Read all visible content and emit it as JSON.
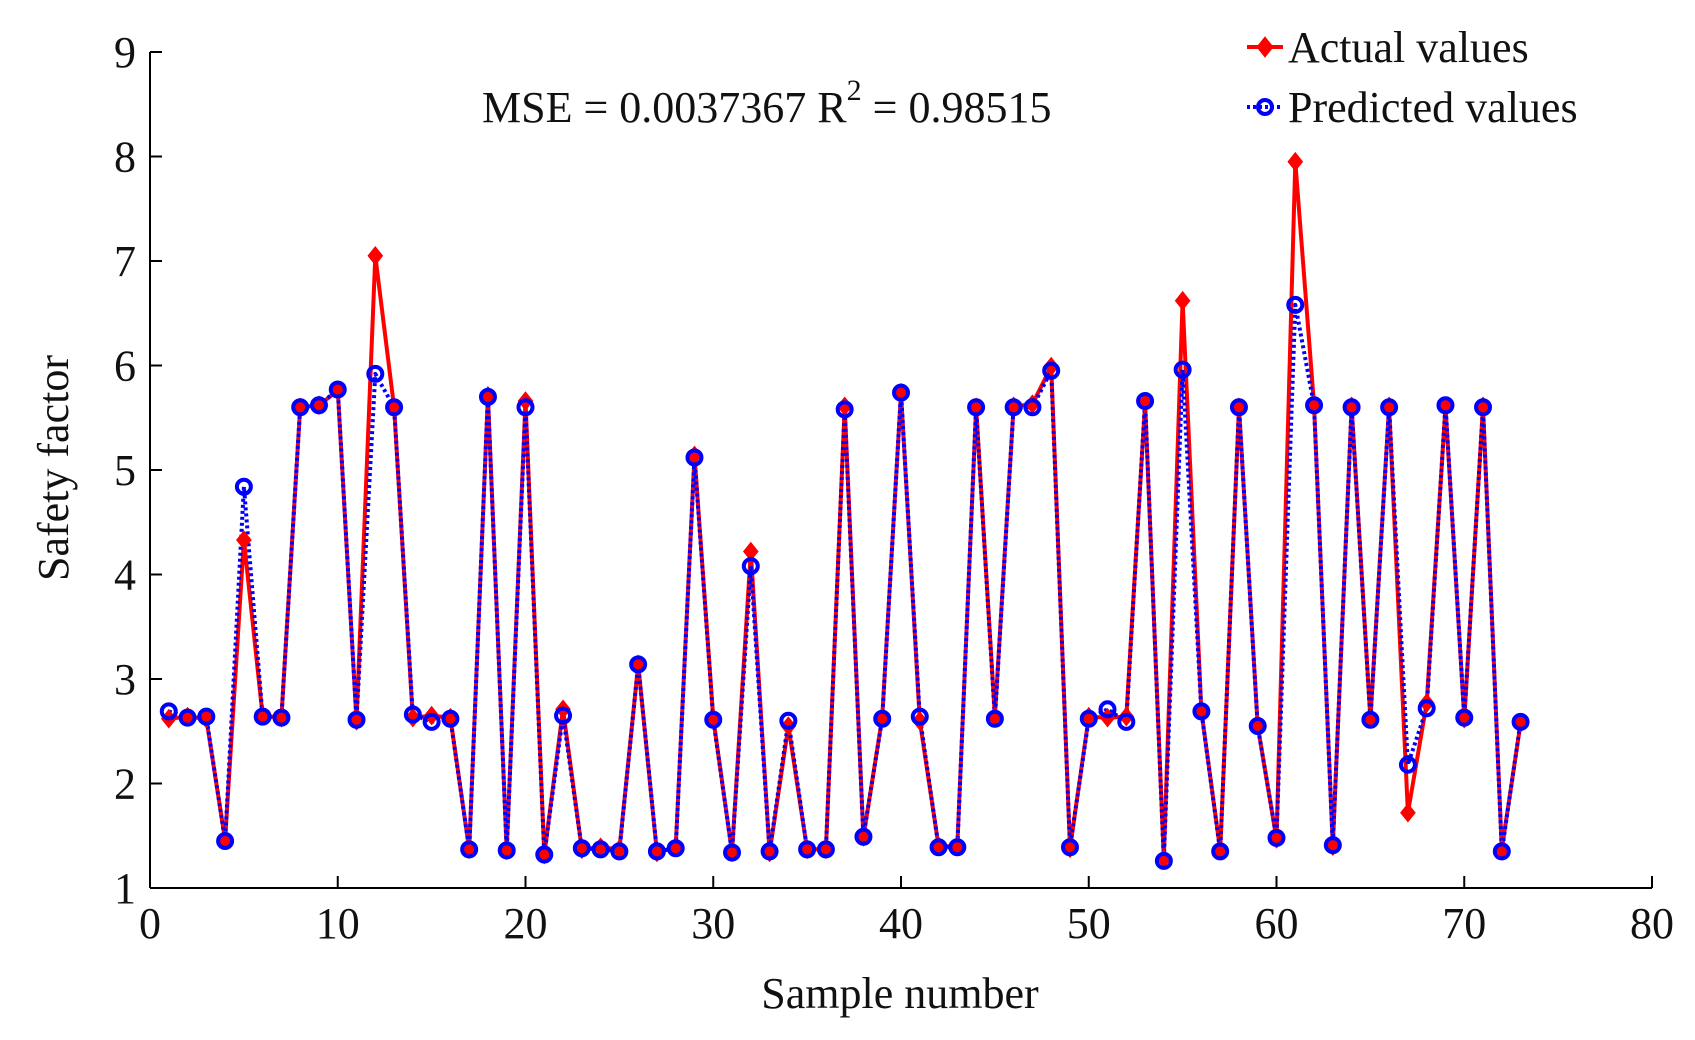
{
  "chart_data": {
    "type": "line",
    "xlabel": "Sample number",
    "ylabel": "Safety factor",
    "xlim": [
      0,
      80
    ],
    "ylim": [
      1,
      9
    ],
    "xticks": [
      "0",
      "10",
      "20",
      "30",
      "40",
      "50",
      "60",
      "70",
      "80"
    ],
    "yticks": [
      "1",
      "2",
      "3",
      "4",
      "5",
      "6",
      "7",
      "8",
      "9"
    ],
    "annotation": {
      "mse_text": "MSE = 0.0037367 R",
      "r2_sup": "2",
      "r2_text": " = 0.98515"
    },
    "legend_position": "top-right",
    "grid": false,
    "x": [
      1,
      2,
      3,
      4,
      5,
      6,
      7,
      8,
      9,
      10,
      11,
      12,
      13,
      14,
      15,
      16,
      17,
      18,
      19,
      20,
      21,
      22,
      23,
      24,
      25,
      26,
      27,
      28,
      29,
      30,
      31,
      32,
      33,
      34,
      35,
      36,
      37,
      38,
      39,
      40,
      41,
      42,
      43,
      44,
      45,
      46,
      47,
      48,
      49,
      50,
      51,
      52,
      53,
      54,
      55,
      56,
      57,
      58,
      59,
      60,
      61,
      62,
      63,
      64,
      65,
      66,
      67,
      68,
      69,
      70,
      71,
      72,
      73
    ],
    "series": [
      {
        "name": "Actual values",
        "color": "#ff0000",
        "marker": "diamond",
        "values": [
          2.62,
          2.64,
          2.62,
          1.46,
          4.33,
          2.65,
          2.63,
          5.6,
          5.62,
          5.76,
          2.6,
          7.05,
          5.6,
          2.63,
          2.65,
          2.63,
          1.37,
          5.71,
          1.36,
          5.66,
          1.32,
          2.71,
          1.37,
          1.39,
          1.37,
          3.14,
          1.34,
          1.39,
          5.14,
          2.62,
          1.34,
          4.22,
          1.34,
          2.55,
          1.37,
          1.37,
          5.61,
          1.49,
          2.63,
          5.74,
          2.6,
          1.4,
          1.4,
          5.6,
          2.64,
          5.61,
          5.63,
          5.99,
          1.38,
          2.64,
          2.63,
          2.64,
          5.64,
          1.28,
          6.62,
          2.69,
          1.36,
          5.6,
          2.55,
          1.47,
          7.95,
          5.63,
          1.4,
          5.61,
          2.62,
          5.61,
          1.72,
          2.77,
          5.61,
          2.62,
          5.61,
          1.37,
          2.58
        ]
      },
      {
        "name": "Predicted values",
        "color": "#0000ff",
        "marker": "circle",
        "values": [
          2.69,
          2.63,
          2.64,
          1.45,
          4.84,
          2.64,
          2.63,
          5.6,
          5.62,
          5.77,
          2.61,
          5.92,
          5.6,
          2.66,
          2.59,
          2.62,
          1.37,
          5.7,
          1.36,
          5.6,
          1.32,
          2.65,
          1.38,
          1.37,
          1.35,
          3.14,
          1.35,
          1.38,
          5.12,
          2.61,
          1.34,
          4.08,
          1.35,
          2.6,
          1.37,
          1.37,
          5.58,
          1.49,
          2.62,
          5.74,
          2.64,
          1.39,
          1.39,
          5.6,
          2.62,
          5.6,
          5.6,
          5.95,
          1.39,
          2.62,
          2.71,
          2.59,
          5.66,
          1.26,
          5.96,
          2.69,
          1.35,
          5.6,
          2.55,
          1.48,
          6.58,
          5.62,
          1.41,
          5.6,
          2.61,
          5.6,
          2.18,
          2.72,
          5.62,
          2.63,
          5.6,
          1.35,
          2.59
        ]
      }
    ]
  }
}
